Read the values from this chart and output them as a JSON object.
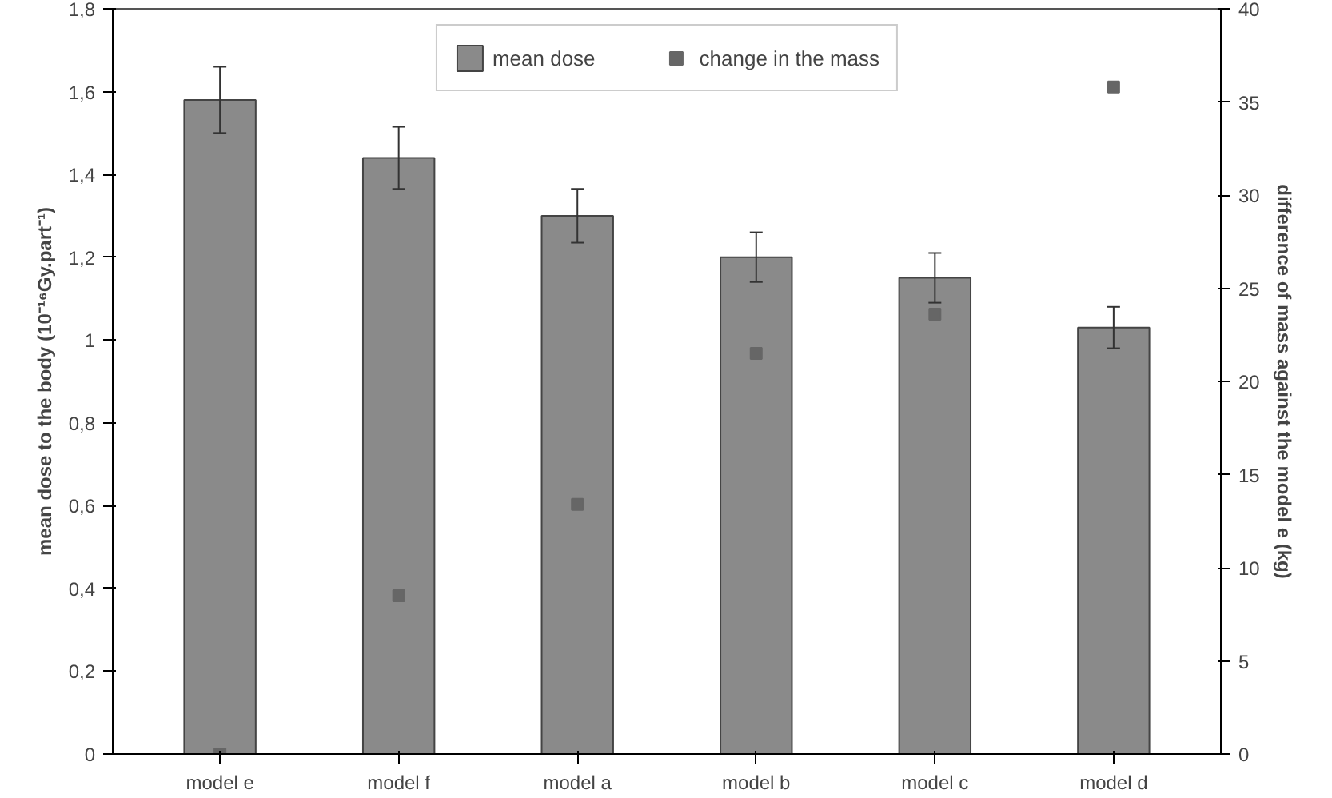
{
  "chart_data": {
    "type": "bar",
    "categories": [
      "model e",
      "model f",
      "model a",
      "model b",
      "model c",
      "model d"
    ],
    "ylabel": "mean dose to the body (10⁻¹⁶Gy.part⁻¹)",
    "y2label": "difference of mass against the model e (kg)",
    "ylim": [
      0,
      1.8
    ],
    "yticks": [
      {
        "value": 0,
        "label": "0"
      },
      {
        "value": 0.2,
        "label": "0,2"
      },
      {
        "value": 0.4,
        "label": "0,4"
      },
      {
        "value": 0.6,
        "label": "0,6"
      },
      {
        "value": 0.8,
        "label": "0,8"
      },
      {
        "value": 1,
        "label": "1"
      },
      {
        "value": 1.2,
        "label": "1,2"
      },
      {
        "value": 1.4,
        "label": "1,4"
      },
      {
        "value": 1.6,
        "label": "1,6"
      },
      {
        "value": 1.8,
        "label": "1,8"
      }
    ],
    "y2lim": [
      0,
      40
    ],
    "y2ticks": [
      0,
      5,
      10,
      15,
      20,
      25,
      30,
      35,
      40
    ],
    "series": [
      {
        "name": "mean dose",
        "color": "#8a8a8a",
        "values": [
          1.58,
          1.44,
          1.3,
          1.2,
          1.15,
          1.03
        ],
        "errors": [
          0.08,
          0.075,
          0.065,
          0.06,
          0.06,
          0.05
        ]
      },
      {
        "name": "change in the mass",
        "type": "scatter",
        "axis": "y2",
        "color": "#666666",
        "marker": "square",
        "values": [
          0,
          8.5,
          13.4,
          21.5,
          23.6,
          35.8
        ]
      }
    ],
    "legend": "top",
    "grid": false
  }
}
